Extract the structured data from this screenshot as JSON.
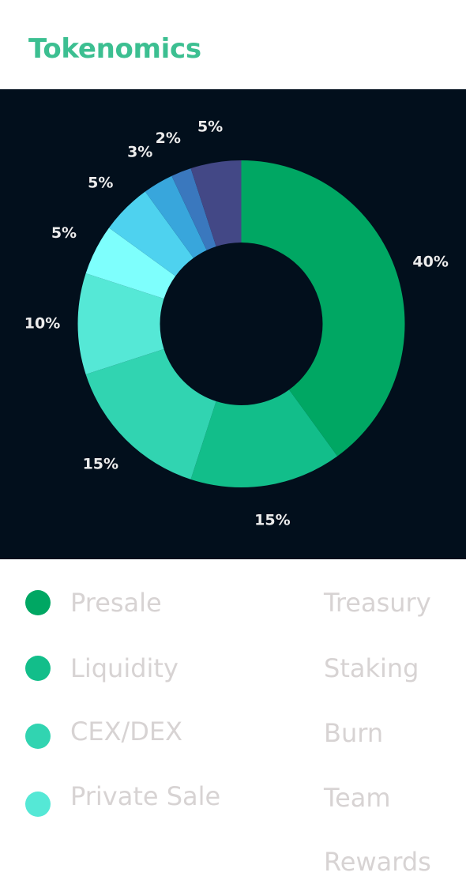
{
  "title": "Tokenomics",
  "colors": {
    "title": "#3cbf91",
    "chart_background": "#020f1c",
    "legend_text": "#d7d3d3",
    "data_label": "#ececec"
  },
  "chart_data": {
    "type": "donut",
    "title": "",
    "slices": [
      {
        "label": "Presale",
        "value": 40,
        "display": "40%",
        "color": "#00a763"
      },
      {
        "label": "Liquidity",
        "value": 15,
        "display": "15%",
        "color": "#12be8a"
      },
      {
        "label": "CEX/DEX",
        "value": 15,
        "display": "15%",
        "color": "#31d4b1"
      },
      {
        "label": "Private Sale",
        "value": 10,
        "display": "10%",
        "color": "#55e8d6"
      },
      {
        "label": "Treasury",
        "value": 5,
        "display": "5%",
        "color": "#7efffd"
      },
      {
        "label": "Staking",
        "value": 5,
        "display": "5%",
        "color": "#4ed2ef"
      },
      {
        "label": "Burn",
        "value": 3,
        "display": "3%",
        "color": "#38a6dc"
      },
      {
        "label": "Team",
        "value": 2,
        "display": "2%",
        "color": "#3a78be"
      },
      {
        "label": "Rewards",
        "value": 5,
        "display": "5%",
        "color": "#434886"
      }
    ]
  },
  "legend": {
    "left": [
      "Presale",
      "Liquidity",
      "CEX/DEX",
      "Private Sale"
    ],
    "right": [
      "Treasury",
      "Staking",
      "Burn",
      "Team",
      "Rewards"
    ]
  }
}
